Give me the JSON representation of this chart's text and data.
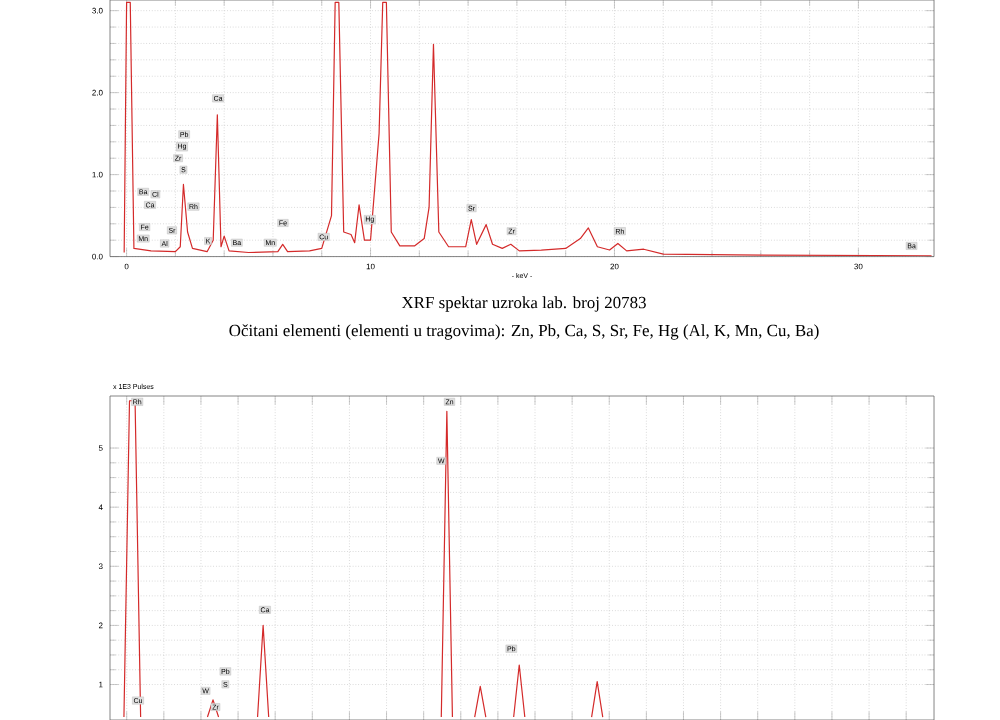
{
  "chart_data": [
    {
      "type": "line",
      "xlabel": "- keV -",
      "xlim": [
        -0.68,
        33.1
      ],
      "ylim": [
        0,
        3.13
      ],
      "xticks": [
        0,
        10,
        20,
        30
      ],
      "yticks": [
        {
          "value": 0,
          "label": "0.0"
        },
        {
          "value": 1,
          "label": "1.0"
        },
        {
          "value": 2,
          "label": "2.0"
        },
        {
          "value": 3,
          "label": "3.0"
        }
      ],
      "grid": true,
      "marker": "none",
      "line_style": "solid",
      "series": [
        {
          "color": "#d42a2a",
          "x": [
            -0.1,
            0.0,
            0.15,
            0.3,
            1.0,
            2.0,
            2.2,
            2.33,
            2.5,
            2.7,
            3.3,
            3.55,
            3.72,
            3.87,
            4.0,
            4.2,
            5.0,
            6.2,
            6.4,
            6.6,
            7.5,
            8.0,
            8.4,
            8.55,
            8.7,
            8.9,
            9.2,
            9.35,
            9.53,
            9.75,
            10.0,
            10.35,
            10.5,
            10.65,
            10.85,
            11.2,
            11.8,
            12.2,
            12.4,
            12.58,
            12.8,
            13.2,
            13.9,
            14.13,
            14.35,
            14.74,
            15.0,
            15.4,
            15.75,
            16.1,
            17.0,
            18.0,
            18.6,
            18.93,
            19.3,
            19.8,
            20.14,
            20.5,
            21.2,
            22.0,
            25.0,
            33.0
          ],
          "values": [
            0.05,
            3.1,
            3.1,
            0.1,
            0.07,
            0.06,
            0.12,
            0.88,
            0.3,
            0.1,
            0.06,
            0.2,
            1.73,
            0.12,
            0.25,
            0.07,
            0.05,
            0.06,
            0.15,
            0.06,
            0.07,
            0.1,
            0.5,
            3.1,
            3.1,
            0.3,
            0.27,
            0.17,
            0.63,
            0.2,
            0.2,
            1.5,
            3.1,
            3.1,
            0.3,
            0.13,
            0.13,
            0.22,
            0.6,
            2.59,
            0.3,
            0.12,
            0.12,
            0.45,
            0.15,
            0.39,
            0.15,
            0.1,
            0.15,
            0.07,
            0.08,
            0.1,
            0.22,
            0.35,
            0.12,
            0.08,
            0.16,
            0.07,
            0.09,
            0.03,
            0.02,
            0.01
          ]
        }
      ],
      "annotations": [
        {
          "text": "Ba",
          "x": 0.68,
          "y": 0.79
        },
        {
          "text": "Cl",
          "x": 1.18,
          "y": 0.76
        },
        {
          "text": "Ca",
          "x": 0.96,
          "y": 0.63
        },
        {
          "text": "Fe",
          "x": 0.74,
          "y": 0.36
        },
        {
          "text": "Mn",
          "x": 0.68,
          "y": 0.22
        },
        {
          "text": "Al",
          "x": 1.56,
          "y": 0.16
        },
        {
          "text": "Sr",
          "x": 1.86,
          "y": 0.32
        },
        {
          "text": "Pb",
          "x": 2.36,
          "y": 1.49
        },
        {
          "text": "Hg",
          "x": 2.27,
          "y": 1.34
        },
        {
          "text": "Zr",
          "x": 2.11,
          "y": 1.2
        },
        {
          "text": "S",
          "x": 2.33,
          "y": 1.06
        },
        {
          "text": "Rh",
          "x": 2.74,
          "y": 0.61
        },
        {
          "text": "Ca",
          "x": 3.75,
          "y": 1.93
        },
        {
          "text": "K",
          "x": 3.34,
          "y": 0.19
        },
        {
          "text": "Ba",
          "x": 4.52,
          "y": 0.17
        },
        {
          "text": "Mn",
          "x": 5.89,
          "y": 0.17
        },
        {
          "text": "Fe",
          "x": 6.41,
          "y": 0.41
        },
        {
          "text": "Cu",
          "x": 8.08,
          "y": 0.24
        },
        {
          "text": "Hg",
          "x": 9.97,
          "y": 0.45
        },
        {
          "text": "Sr",
          "x": 14.14,
          "y": 0.59
        },
        {
          "text": "Zr",
          "x": 15.78,
          "y": 0.31
        },
        {
          "text": "Rh",
          "x": 20.22,
          "y": 0.31
        },
        {
          "text": "Ba",
          "x": 32.18,
          "y": 0.13
        },
        "XRF spektar uzroka lab. broj 20783",
        "Očitani elementi (elementi u tragovima): Zn, Pb, Ca, S, Sr, Fe, Hg (Al, K, Mn, Cu, Ba)"
      ]
    },
    {
      "type": "line",
      "ylabel": "x 1E3 Pulses",
      "ylim": [
        0.4,
        5.88
      ],
      "yticks": [
        1,
        2,
        3,
        4,
        5
      ],
      "tick_labels": "y",
      "categories": [
        null,
        null,
        null,
        null,
        null,
        null,
        null,
        null,
        null,
        null,
        null,
        null,
        null,
        null,
        null,
        null,
        null,
        null,
        null,
        null,
        null,
        null,
        null,
        null,
        null,
        null,
        null,
        null,
        null,
        null,
        null,
        null,
        null,
        null,
        null,
        null,
        null,
        null,
        null,
        null,
        null,
        null,
        null,
        null,
        null,
        null,
        null,
        null,
        null,
        null,
        null,
        null,
        null,
        null,
        null,
        null,
        null,
        null,
        null,
        null,
        null,
        null,
        null,
        null,
        null,
        null,
        null,
        null,
        null,
        null,
        null,
        null,
        null,
        null,
        null,
        null,
        null,
        null,
        null,
        null,
        null,
        null,
        null,
        null,
        null,
        null,
        null,
        null,
        null,
        null,
        null,
        null,
        null,
        null,
        null,
        null,
        null,
        null,
        null,
        null,
        null,
        null,
        null,
        null,
        null,
        null,
        null,
        null,
        null,
        null,
        null,
        null,
        null,
        null,
        null,
        null,
        null,
        null,
        null,
        null,
        null,
        null,
        null,
        null,
        null,
        null,
        null,
        null,
        null,
        null,
        null,
        null,
        null,
        null,
        null,
        null,
        null,
        null,
        null,
        null,
        null,
        null,
        null,
        null,
        null,
        null,
        null,
        null
      ],
      "grid": true,
      "marker": "none",
      "line_style": "solid",
      "series": [
        {
          "color": "#d42a2a",
          "values": [
            null,
            null,
            0.45,
            5.8,
            5.8,
            0.45,
            null,
            null,
            null,
            null,
            null,
            null,
            null,
            null,
            null,
            null,
            null,
            0.45,
            0.74,
            0.45,
            null,
            null,
            null,
            null,
            null,
            null,
            0.45,
            2.0,
            0.45,
            null,
            null,
            null,
            null,
            null,
            null,
            null,
            null,
            null,
            null,
            null,
            null,
            null,
            null,
            null,
            null,
            null,
            null,
            null,
            null,
            null,
            null,
            null,
            null,
            null,
            null,
            null,
            null,
            null,
            null,
            0.45,
            5.62,
            0.45,
            null,
            null,
            null,
            0.45,
            0.97,
            0.45,
            null,
            null,
            null,
            null,
            0.45,
            1.33,
            0.45,
            null,
            null,
            null,
            null,
            null,
            null,
            null,
            null,
            null,
            null,
            null,
            0.45,
            1.05,
            0.45,
            null,
            null,
            null,
            null,
            null,
            null,
            null,
            null,
            null,
            null,
            null,
            null,
            null,
            null,
            null,
            null,
            null,
            null,
            null,
            null,
            null,
            null,
            null,
            null,
            null,
            null,
            null,
            null,
            null,
            null,
            null,
            null,
            null,
            null,
            null,
            null,
            null,
            null,
            null,
            null,
            null,
            null,
            null,
            null,
            null,
            null,
            null,
            null,
            null,
            null,
            null,
            null,
            null,
            null,
            null,
            null,
            null,
            null,
            null
          ]
        }
      ],
      "annotations": [
        "Rh",
        "Zn",
        "W",
        "Ca",
        "Pb",
        "W",
        "Pb",
        "S",
        "Zr",
        "Cu"
      ]
    }
  ]
}
